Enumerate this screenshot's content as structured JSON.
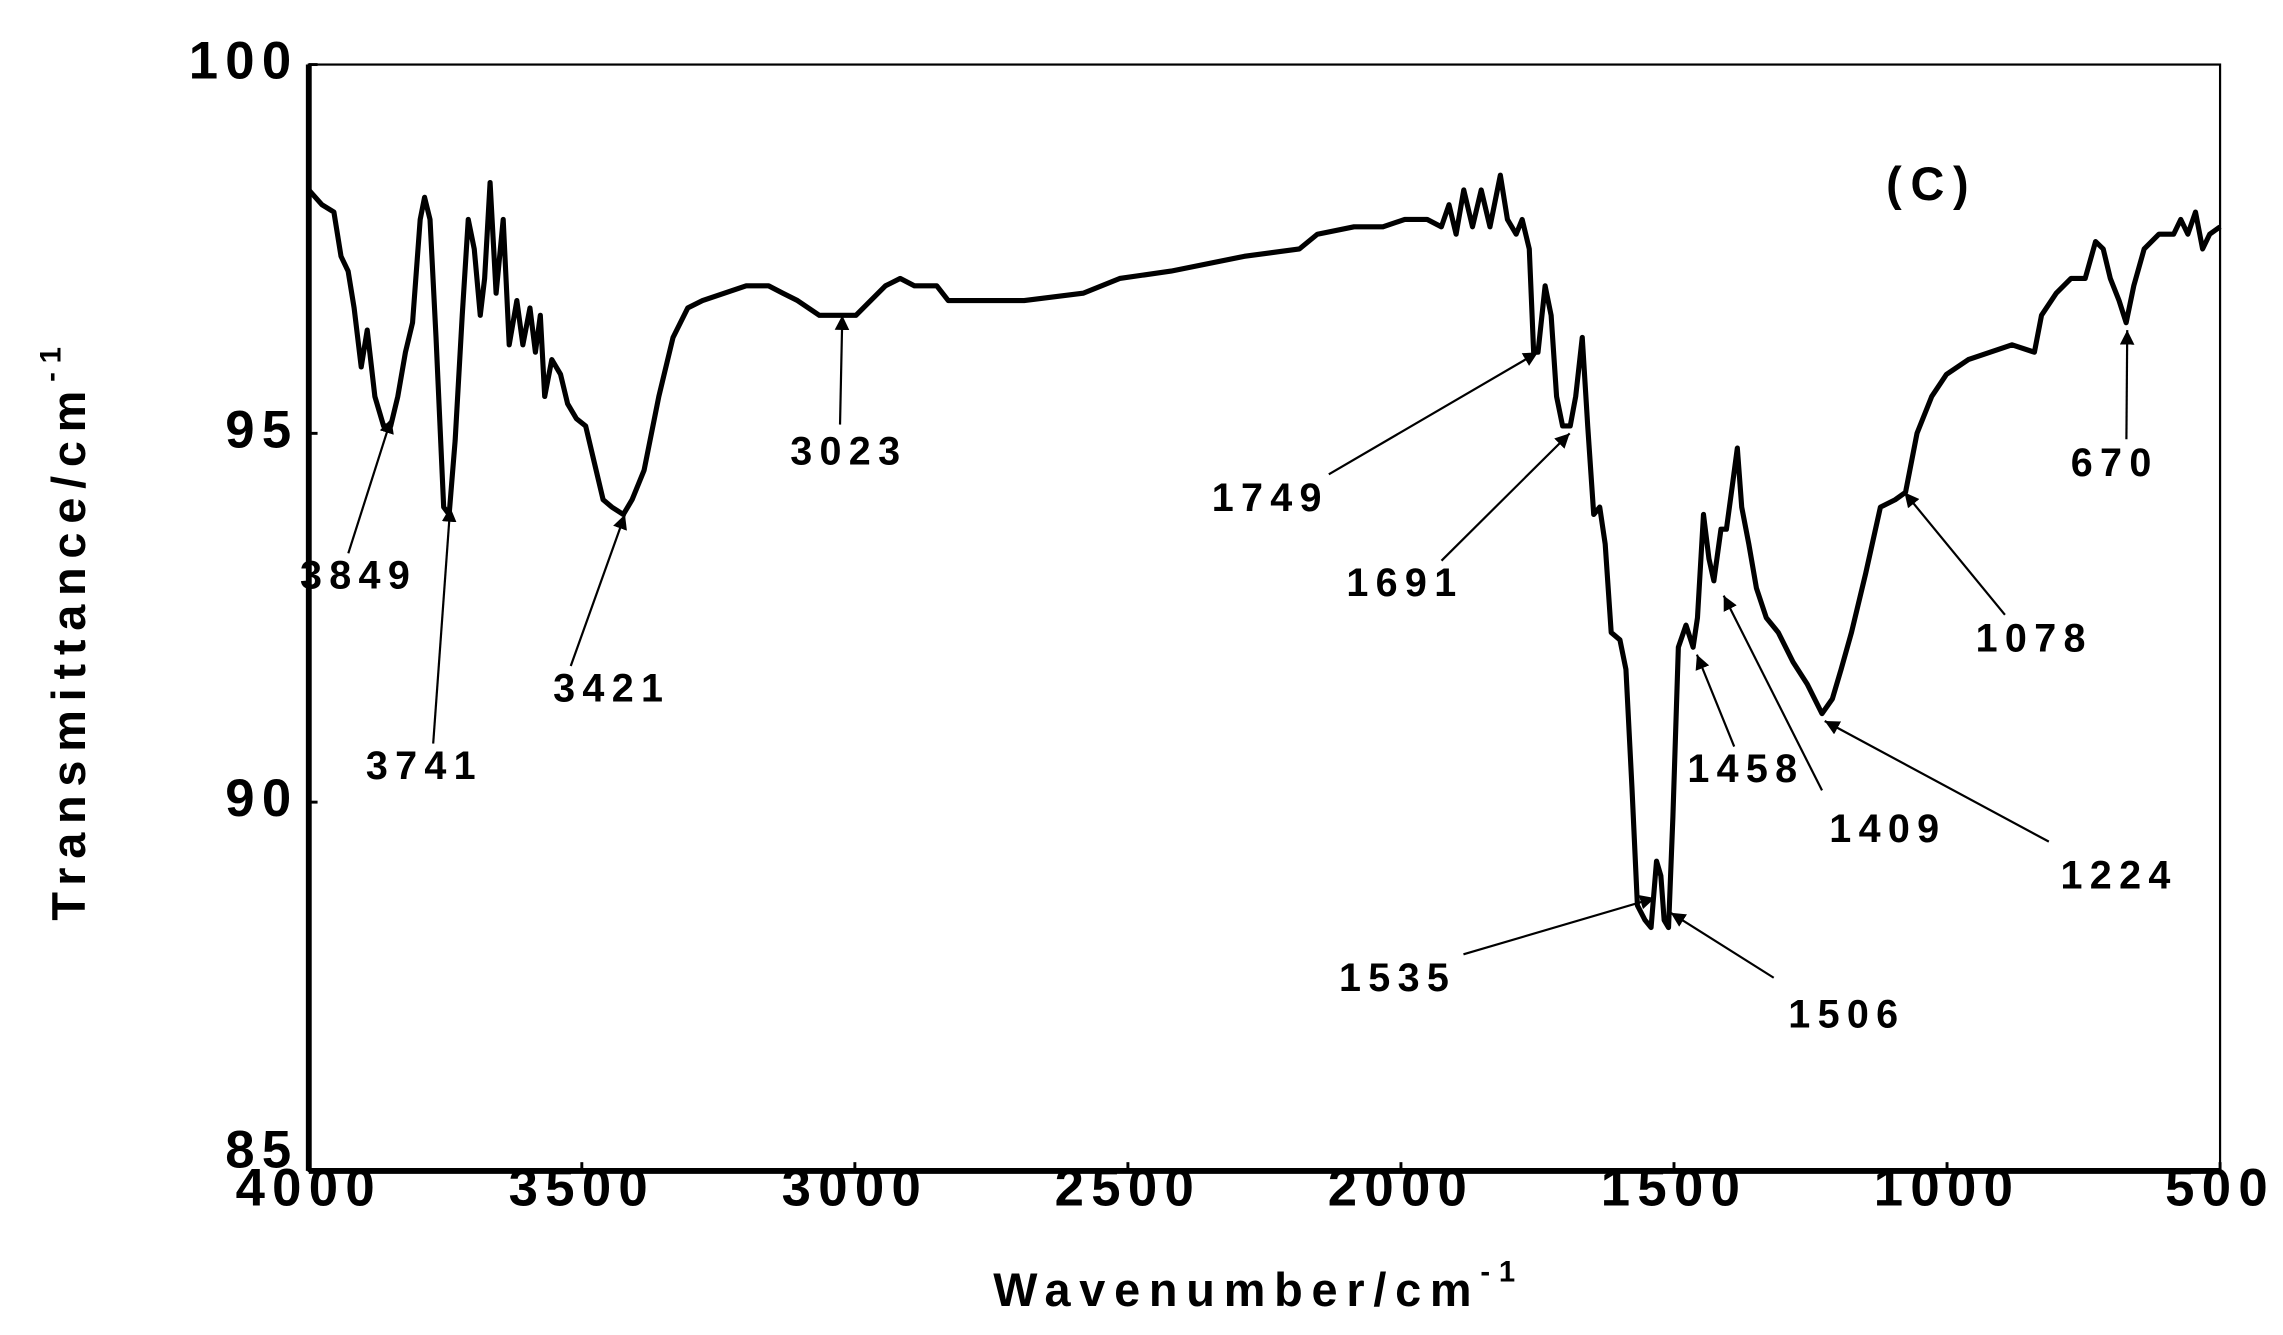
{
  "chart_data": {
    "type": "line",
    "x_label": "Wavenumber/cm",
    "x_label_sup": "-1",
    "y_label": "Transmittance/cm",
    "y_label_sup": "-1",
    "panel_label": "(C)",
    "color": "#000000",
    "xlim": [
      4000,
      500
    ],
    "ylim": [
      85,
      100
    ],
    "xticks": [
      4000,
      3500,
      3000,
      2500,
      2000,
      1500,
      1000,
      500
    ],
    "yticks": [
      85,
      90,
      95,
      100
    ],
    "grid": false,
    "x": [
      4000,
      3976,
      3954,
      3941,
      3928,
      3917,
      3904,
      3893,
      3879,
      3863,
      3850,
      3837,
      3823,
      3810,
      3796,
      3788,
      3778,
      3767,
      3753,
      3743,
      3732,
      3719,
      3708,
      3697,
      3686,
      3678,
      3668,
      3657,
      3644,
      3633,
      3619,
      3608,
      3595,
      3585,
      3576,
      3568,
      3555,
      3539,
      3526,
      3510,
      3493,
      3477,
      3461,
      3445,
      3424,
      3408,
      3386,
      3359,
      3333,
      3306,
      3279,
      3239,
      3199,
      3158,
      3132,
      3105,
      3065,
      3027,
      2998,
      2971,
      2944,
      2917,
      2891,
      2850,
      2829,
      2783,
      2690,
      2582,
      2515,
      2421,
      2287,
      2186,
      2153,
      2086,
      2033,
      1993,
      1952,
      1926,
      1912,
      1899,
      1885,
      1869,
      1853,
      1837,
      1818,
      1805,
      1789,
      1778,
      1765,
      1757,
      1749,
      1736,
      1725,
      1715,
      1704,
      1690,
      1680,
      1668,
      1658,
      1647,
      1636,
      1626,
      1615,
      1599,
      1588,
      1577,
      1567,
      1553,
      1542,
      1532,
      1524,
      1518,
      1510,
      1502,
      1492,
      1478,
      1465,
      1457,
      1446,
      1436,
      1427,
      1414,
      1404,
      1393,
      1384,
      1376,
      1363,
      1349,
      1331,
      1309,
      1282,
      1256,
      1229,
      1210,
      1194,
      1175,
      1149,
      1122,
      1095,
      1076,
      1055,
      1028,
      1001,
      961,
      921,
      881,
      840,
      827,
      800,
      773,
      747,
      728,
      714,
      701,
      685,
      672,
      658,
      639,
      612,
      585,
      572,
      559,
      545,
      532,
      519,
      500
    ],
    "values": [
      98.3,
      98.1,
      98.0,
      97.4,
      97.2,
      96.7,
      95.9,
      96.4,
      95.5,
      95.1,
      95.1,
      95.5,
      96.1,
      96.5,
      97.9,
      98.2,
      97.9,
      96.3,
      94.0,
      93.9,
      94.9,
      96.6,
      97.9,
      97.5,
      96.6,
      97.1,
      98.4,
      96.9,
      97.9,
      96.2,
      96.8,
      96.2,
      96.7,
      96.1,
      96.6,
      95.5,
      96.0,
      95.8,
      95.4,
      95.2,
      95.1,
      94.6,
      94.1,
      94.0,
      93.9,
      94.1,
      94.5,
      95.5,
      96.3,
      96.7,
      96.8,
      96.9,
      97.0,
      97.0,
      96.9,
      96.8,
      96.6,
      96.6,
      96.6,
      96.8,
      97.0,
      97.1,
      97.0,
      97.0,
      96.8,
      96.8,
      96.8,
      96.9,
      97.1,
      97.2,
      97.4,
      97.5,
      97.7,
      97.8,
      97.8,
      97.9,
      97.9,
      97.8,
      98.1,
      97.7,
      98.3,
      97.8,
      98.3,
      97.8,
      98.5,
      97.9,
      97.7,
      97.9,
      97.5,
      96.1,
      96.1,
      97.0,
      96.6,
      95.5,
      95.1,
      95.1,
      95.5,
      96.3,
      95.1,
      93.9,
      94.0,
      93.5,
      92.3,
      92.2,
      91.8,
      90.2,
      88.6,
      88.4,
      88.3,
      89.2,
      89.0,
      88.4,
      88.3,
      89.8,
      92.1,
      92.4,
      92.1,
      92.5,
      93.9,
      93.3,
      93.0,
      93.7,
      93.7,
      94.3,
      94.8,
      94.0,
      93.5,
      92.9,
      92.5,
      92.3,
      91.9,
      91.6,
      91.2,
      91.4,
      91.8,
      92.3,
      93.1,
      94.0,
      94.1,
      94.2,
      95.0,
      95.5,
      95.8,
      96.0,
      96.1,
      96.2,
      96.1,
      96.6,
      96.9,
      97.1,
      97.1,
      97.6,
      97.5,
      97.1,
      96.8,
      96.5,
      97.0,
      97.5,
      97.7,
      97.7,
      97.9,
      97.7,
      98.0,
      97.5,
      97.7,
      97.8
    ],
    "annotations": [
      {
        "x": 3849,
        "y": 95.2
      },
      {
        "x": 3741,
        "y": 94.0
      },
      {
        "x": 3421,
        "y": 93.9
      },
      {
        "x": 3023,
        "y": 96.6
      },
      {
        "x": 1749,
        "y": 96.1
      },
      {
        "x": 1691,
        "y": 95.0
      },
      {
        "x": 1535,
        "y": 88.7
      },
      {
        "x": 1506,
        "y": 88.5
      },
      {
        "x": 1458,
        "y": 92.0
      },
      {
        "x": 1409,
        "y": 92.8
      },
      {
        "x": 1224,
        "y": 91.1
      },
      {
        "x": 1078,
        "y": 94.2
      },
      {
        "x": 670,
        "y": 96.4
      }
    ]
  }
}
